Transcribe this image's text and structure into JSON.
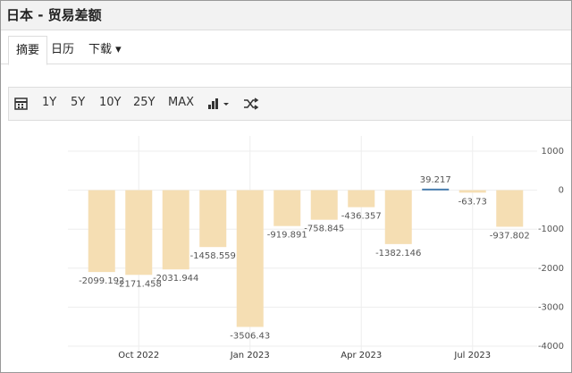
{
  "header": {
    "title": "日本 - 贸易差额"
  },
  "tabs": [
    "摘要",
    "日历",
    "下载"
  ],
  "toolbar": {
    "ranges": [
      "1Y",
      "5Y",
      "10Y",
      "25Y",
      "MAX"
    ]
  },
  "chart_data": {
    "type": "bar",
    "categories": [
      null,
      "Oct 2022",
      null,
      null,
      "Jan 2023",
      null,
      null,
      "Apr 2023",
      null,
      null,
      "Jul 2023",
      null
    ],
    "values": [
      -2099.192,
      -2171.458,
      -2031.944,
      -1458.559,
      -3506.43,
      -919.891,
      -758.845,
      -436.357,
      -1382.146,
      39.217,
      -63.73,
      -937.802
    ],
    "color": "#f5deb3",
    "positive_color": "#4a7fb0",
    "ylim": [
      -4000,
      1000
    ],
    "yticks": [
      -4000,
      -3000,
      -2000,
      -1000,
      0,
      1000
    ],
    "grid": true
  }
}
